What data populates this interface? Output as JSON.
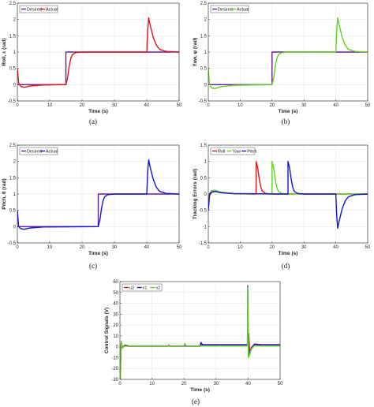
{
  "colors": {
    "desired": "#6a1b9a",
    "roll": "#e0141b",
    "yaw": "#5ed21f",
    "pitch": "#1414d2",
    "u2": "#e0141b",
    "v1": "#1414d2",
    "v2": "#5ed21f"
  },
  "chart_data": [
    {
      "type": "line",
      "caption": "(a)",
      "xlabel": "Time (s)",
      "ylabel": "Roll, ε (rad)",
      "xlim": [
        0,
        50
      ],
      "ylim": [
        -0.5,
        2.5
      ],
      "xticks": [
        "0",
        "10",
        "20",
        "30",
        "40",
        "50"
      ],
      "yticks": [
        "-0.5",
        "0",
        "0.5",
        "1",
        "1.5",
        "2",
        "2.5"
      ],
      "grid": true,
      "legend": "top-left",
      "series": [
        {
          "name": "Desired",
          "color": "#6a1b9a",
          "points": [
            [
              0,
              0
            ],
            [
              15,
              0
            ],
            [
              15,
              1
            ],
            [
              50,
              1
            ]
          ]
        },
        {
          "name": "Actual",
          "color": "#e0141b",
          "points": [
            [
              0,
              0.5
            ],
            [
              0.4,
              0.05
            ],
            [
              1,
              -0.05
            ],
            [
              2,
              -0.08
            ],
            [
              4,
              -0.04
            ],
            [
              8,
              -0.01
            ],
            [
              15,
              0
            ],
            [
              15.5,
              0.2
            ],
            [
              16,
              0.55
            ],
            [
              16.5,
              0.8
            ],
            [
              17,
              0.92
            ],
            [
              18,
              0.98
            ],
            [
              20,
              1.0
            ],
            [
              40,
              1.0
            ],
            [
              40.3,
              1.7
            ],
            [
              40.6,
              2.05
            ],
            [
              41,
              1.85
            ],
            [
              42,
              1.45
            ],
            [
              43,
              1.2
            ],
            [
              44,
              1.08
            ],
            [
              46,
              1.02
            ],
            [
              50,
              1.0
            ]
          ]
        }
      ]
    },
    {
      "type": "line",
      "caption": "(b)",
      "xlabel": "Time (s)",
      "ylabel": "Yaw, φ (rad)",
      "xlim": [
        0,
        50
      ],
      "ylim": [
        -0.5,
        2.5
      ],
      "xticks": [
        "0",
        "10",
        "20",
        "30",
        "40",
        "50"
      ],
      "yticks": [
        "-0.5",
        "0",
        "0.5",
        "1",
        "1.5",
        "2",
        "2.5"
      ],
      "grid": true,
      "legend": "top-left",
      "series": [
        {
          "name": "Desired",
          "color": "#6a1b9a",
          "points": [
            [
              0,
              0
            ],
            [
              20,
              0
            ],
            [
              20,
              1
            ],
            [
              50,
              1
            ]
          ]
        },
        {
          "name": "Actual",
          "color": "#5ed21f",
          "points": [
            [
              0,
              0.5
            ],
            [
              0.4,
              0.0
            ],
            [
              1,
              -0.1
            ],
            [
              2,
              -0.12
            ],
            [
              4,
              -0.06
            ],
            [
              8,
              -0.02
            ],
            [
              20,
              0
            ],
            [
              20.5,
              0.2
            ],
            [
              21,
              0.55
            ],
            [
              21.5,
              0.8
            ],
            [
              22,
              0.92
            ],
            [
              23,
              0.98
            ],
            [
              25,
              1.0
            ],
            [
              40,
              1.0
            ],
            [
              40.3,
              1.7
            ],
            [
              40.6,
              2.05
            ],
            [
              41,
              1.85
            ],
            [
              42,
              1.45
            ],
            [
              43,
              1.2
            ],
            [
              44,
              1.08
            ],
            [
              46,
              1.02
            ],
            [
              50,
              1.0
            ]
          ]
        }
      ]
    },
    {
      "type": "line",
      "caption": "(c)",
      "xlabel": "Time (s)",
      "ylabel": "Pitch, θ (rad)",
      "xlim": [
        0,
        50
      ],
      "ylim": [
        -0.5,
        2.5
      ],
      "xticks": [
        "0",
        "10",
        "20",
        "30",
        "40",
        "50"
      ],
      "yticks": [
        "-0.5",
        "0",
        "0.5",
        "1",
        "1.5",
        "2",
        "2.5"
      ],
      "grid": true,
      "legend": "top-left",
      "series": [
        {
          "name": "Desired",
          "color": "#6a1b9a",
          "points": [
            [
              0,
              0
            ],
            [
              25,
              0
            ],
            [
              25,
              1
            ],
            [
              50,
              1
            ]
          ]
        },
        {
          "name": "Actual",
          "color": "#1414d2",
          "points": [
            [
              0,
              0.5
            ],
            [
              0.4,
              0.0
            ],
            [
              1,
              -0.06
            ],
            [
              2,
              -0.08
            ],
            [
              4,
              -0.04
            ],
            [
              8,
              -0.01
            ],
            [
              25,
              0
            ],
            [
              25.5,
              0.2
            ],
            [
              26,
              0.55
            ],
            [
              26.5,
              0.8
            ],
            [
              27,
              0.92
            ],
            [
              28,
              0.98
            ],
            [
              30,
              1.0
            ],
            [
              40,
              1.0
            ],
            [
              40.3,
              1.7
            ],
            [
              40.6,
              2.05
            ],
            [
              41,
              1.85
            ],
            [
              42,
              1.45
            ],
            [
              43,
              1.2
            ],
            [
              44,
              1.08
            ],
            [
              46,
              1.02
            ],
            [
              50,
              1.0
            ]
          ]
        }
      ]
    },
    {
      "type": "line",
      "caption": "(d)",
      "xlabel": "Time (s)",
      "ylabel": "Tracking Errors (rad)",
      "xlim": [
        0,
        50
      ],
      "ylim": [
        -1.5,
        1.5
      ],
      "xticks": [
        "0",
        "10",
        "20",
        "30",
        "40",
        "50"
      ],
      "yticks": [
        "-1.5",
        "-1",
        "-0.5",
        "0",
        "0.5",
        "1",
        "1.5"
      ],
      "grid": true,
      "legend": "top-left",
      "series": [
        {
          "name": "Roll",
          "color": "#e0141b",
          "points": [
            [
              0,
              -0.5
            ],
            [
              0.4,
              -0.05
            ],
            [
              1,
              0.05
            ],
            [
              2,
              0.08
            ],
            [
              4,
              0.04
            ],
            [
              8,
              0.01
            ],
            [
              15,
              0
            ],
            [
              15,
              1
            ],
            [
              15.5,
              0.8
            ],
            [
              16,
              0.45
            ],
            [
              16.5,
              0.2
            ],
            [
              17,
              0.08
            ],
            [
              18,
              0.02
            ],
            [
              20,
              0
            ],
            [
              50,
              0
            ]
          ]
        },
        {
          "name": "Yaw",
          "color": "#5ed21f",
          "points": [
            [
              0,
              -0.5
            ],
            [
              0.4,
              0.0
            ],
            [
              1,
              0.1
            ],
            [
              2,
              0.12
            ],
            [
              4,
              0.06
            ],
            [
              8,
              0.02
            ],
            [
              20,
              0
            ],
            [
              20,
              1
            ],
            [
              20.5,
              0.8
            ],
            [
              21,
              0.45
            ],
            [
              21.5,
              0.2
            ],
            [
              22,
              0.08
            ],
            [
              23,
              0.02
            ],
            [
              25,
              0
            ],
            [
              50,
              0
            ]
          ]
        },
        {
          "name": "Pitch",
          "color": "#1414d2",
          "points": [
            [
              0,
              -0.5
            ],
            [
              0.4,
              0.0
            ],
            [
              1,
              0.06
            ],
            [
              2,
              0.08
            ],
            [
              4,
              0.04
            ],
            [
              8,
              0.01
            ],
            [
              25,
              0
            ],
            [
              25,
              1
            ],
            [
              25.5,
              0.8
            ],
            [
              26,
              0.45
            ],
            [
              26.5,
              0.2
            ],
            [
              27,
              0.08
            ],
            [
              28,
              0.02
            ],
            [
              30,
              0
            ],
            [
              40,
              0
            ],
            [
              40.3,
              -0.7
            ],
            [
              40.6,
              -1.05
            ],
            [
              41,
              -0.85
            ],
            [
              42,
              -0.45
            ],
            [
              43,
              -0.2
            ],
            [
              44,
              -0.08
            ],
            [
              46,
              -0.02
            ],
            [
              50,
              0
            ]
          ]
        }
      ]
    },
    {
      "type": "line",
      "caption": "(e)",
      "xlabel": "Time (s)",
      "ylabel": "Control Signals (V)",
      "xlim": [
        0,
        50
      ],
      "ylim": [
        -30,
        60
      ],
      "xticks": [
        "0",
        "10",
        "20",
        "30",
        "40",
        "50"
      ],
      "yticks": [
        "-30",
        "-20",
        "-10",
        "0",
        "10",
        "20",
        "30",
        "40",
        "50",
        "60"
      ],
      "grid": true,
      "legend": "top-left",
      "series": [
        {
          "name": "u2",
          "color": "#e0141b",
          "points": [
            [
              0,
              0
            ],
            [
              0.15,
              -25
            ],
            [
              0.4,
              4
            ],
            [
              0.8,
              -1
            ],
            [
              1.5,
              1
            ],
            [
              3,
              0.5
            ],
            [
              15,
              0.5
            ],
            [
              15.3,
              1.5
            ],
            [
              15.6,
              0.5
            ],
            [
              20,
              0.5
            ],
            [
              20.3,
              2
            ],
            [
              20.6,
              0.5
            ],
            [
              25,
              0.5
            ],
            [
              25.3,
              3
            ],
            [
              25.8,
              1
            ],
            [
              40,
              1
            ],
            [
              40.2,
              12
            ],
            [
              40.5,
              -5
            ],
            [
              41,
              -2
            ],
            [
              42,
              2
            ],
            [
              44,
              1
            ],
            [
              50,
              1
            ]
          ]
        },
        {
          "name": "v1",
          "color": "#1414d2",
          "points": [
            [
              0,
              0
            ],
            [
              0.15,
              -20
            ],
            [
              0.4,
              3
            ],
            [
              0.8,
              0
            ],
            [
              1.5,
              1.5
            ],
            [
              3,
              0.8
            ],
            [
              15,
              0.8
            ],
            [
              20,
              0.8
            ],
            [
              25,
              0.8
            ],
            [
              25.3,
              4
            ],
            [
              25.8,
              2
            ],
            [
              30,
              2
            ],
            [
              39.8,
              2
            ],
            [
              39.9,
              56
            ],
            [
              40.1,
              -8
            ],
            [
              40.5,
              -5
            ],
            [
              41,
              -1
            ],
            [
              42,
              2.5
            ],
            [
              44,
              2
            ],
            [
              50,
              2
            ]
          ]
        },
        {
          "name": "v2",
          "color": "#5ed21f",
          "points": [
            [
              0,
              0
            ],
            [
              0.15,
              -30
            ],
            [
              0.4,
              5
            ],
            [
              0.8,
              -1
            ],
            [
              1.5,
              2
            ],
            [
              3,
              0.8
            ],
            [
              15,
              0.8
            ],
            [
              20,
              0.8
            ],
            [
              20.3,
              3
            ],
            [
              20.6,
              0.8
            ],
            [
              25,
              0.8
            ],
            [
              39.8,
              0.8
            ],
            [
              39.9,
              55
            ],
            [
              40.1,
              -10
            ],
            [
              40.5,
              -7
            ],
            [
              41,
              -2
            ],
            [
              42,
              1
            ],
            [
              44,
              0.8
            ],
            [
              50,
              0.8
            ]
          ]
        }
      ]
    }
  ]
}
